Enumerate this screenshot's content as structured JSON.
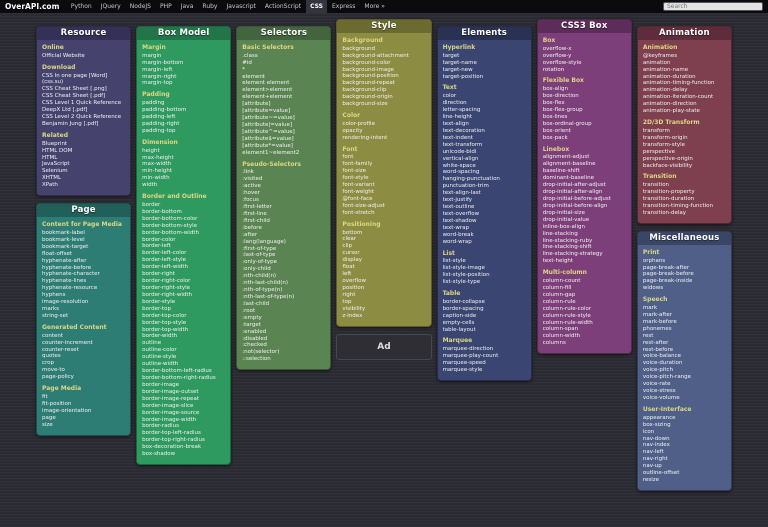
{
  "header": {
    "logo": "OverAPI.com",
    "nav": [
      "Python",
      "JQuery",
      "NodeJS",
      "PHP",
      "Java",
      "Ruby",
      "Javascript",
      "ActionScript",
      "CSS",
      "Express",
      "More »"
    ],
    "active": "CSS",
    "search_placeholder": "Search"
  },
  "colors": {
    "background": "#2b2b33",
    "topbar": "#0b0b0d",
    "section_heading": "#ddd883",
    "item_text": "#f4f4f4"
  },
  "themes": {
    "resource": {
      "body": "#46426e",
      "header": "#343057"
    },
    "page": {
      "body": "#2e7d74",
      "header": "#21605a"
    },
    "boxmodel": {
      "body": "#2f9a60",
      "header": "#217549"
    },
    "selectors": {
      "body": "#5b8453",
      "header": "#43653e"
    },
    "style": {
      "body": "#8c8c42",
      "header": "#6b6b31"
    },
    "elements": {
      "body": "#3a4572",
      "header": "#2a3254"
    },
    "css3box": {
      "body": "#7d3f79",
      "header": "#5e2c5b"
    },
    "animation": {
      "body": "#7e3f4e",
      "header": "#5e2c3a"
    },
    "misc": {
      "body": "#4f5f88",
      "header": "#3a4666"
    }
  },
  "columns": [
    {
      "cards": [
        {
          "title": "Resource",
          "theme": "resource",
          "wrap": true,
          "sections": [
            {
              "heading": "Online",
              "items": [
                "Official Website"
              ]
            },
            {
              "heading": "Download",
              "items": [
                "CSS In one page [Word] (css.su)",
                "CSS Cheat Sheet [.png]",
                "CSS Cheat Sheet [.pdf]",
                "CSS Level 1 Quick Reference DeepX Ltd [.pdf]",
                "CSS Level 2 Quick Reference Benjamin Jung [.pdf]"
              ]
            },
            {
              "heading": "Related",
              "items": [
                "Blueprint",
                "HTML DOM",
                "HTML",
                "JavaScript",
                "Selenium",
                "XHTML",
                "XPath"
              ]
            }
          ]
        },
        {
          "title": "Page",
          "theme": "page",
          "sections": [
            {
              "heading": "Content for Page Media",
              "items": [
                "bookmark-label",
                "bookmark-level",
                "bookmark-target",
                "float-offset",
                "hyphenate-after",
                "hyphenate-before",
                "hyphenate-character",
                "hyphenate-lines",
                "hyphenate-resource",
                "hyphens",
                "image-resolution",
                "marks",
                "string-set"
              ]
            },
            {
              "heading": "Generated Content",
              "items": [
                "content",
                "counter-increment",
                "counter-reset",
                "quotes",
                "crop",
                "move-to",
                "page-policy"
              ]
            },
            {
              "heading": "Page Media",
              "items": [
                "fit",
                "fit-position",
                "image-orientation",
                "page",
                "size"
              ]
            }
          ]
        }
      ]
    },
    {
      "cards": [
        {
          "title": "Box Model",
          "theme": "boxmodel",
          "sections": [
            {
              "heading": "Margin",
              "items": [
                "margin",
                "margin-bottom",
                "margin-left",
                "margin-right",
                "margin-top"
              ]
            },
            {
              "heading": "Padding",
              "items": [
                "padding",
                "padding-bottom",
                "padding-left",
                "padding-right",
                "padding-top"
              ]
            },
            {
              "heading": "Dimension",
              "items": [
                "height",
                "max-height",
                "max-width",
                "min-height",
                "min-width",
                "width"
              ]
            },
            {
              "heading": "Border and Outline",
              "items": [
                "border",
                "border-bottom",
                "border-bottom-color",
                "border-bottom-style",
                "border-bottom-width",
                "border-color",
                "border-left",
                "border-left-color",
                "border-left-style",
                "border-left-width",
                "border-right",
                "border-right-color",
                "border-right-style",
                "border-right-width",
                "border-style",
                "border-top",
                "border-top-color",
                "border-top-style",
                "border-top-width",
                "border-width",
                "outline",
                "outline-color",
                "outline-style",
                "outline-width",
                "border-bottom-left-radius",
                "border-bottom-right-radius",
                "border-image",
                "border-image-outset",
                "border-image-repeat",
                "border-image-slice",
                "border-image-source",
                "border-image-width",
                "border-radius",
                "border-top-left-radius",
                "border-top-right-radius",
                "box-decoration-break",
                "box-shadow"
              ]
            }
          ]
        }
      ]
    },
    {
      "cards": [
        {
          "title": "Selectors",
          "theme": "selectors",
          "sections": [
            {
              "heading": "Basic Selectors",
              "items": [
                ".class",
                "#id",
                "*",
                "element",
                "element element",
                "element>element",
                "element+element",
                "[attribute]",
                "[attribute=value]",
                "[attribute~=value]",
                "[attribute|=value]",
                "[attribute^=value]",
                "[attribute$=value]",
                "[attribute*=value]",
                "element1~element2"
              ]
            },
            {
              "heading": "Pseudo-Selectors",
              "items": [
                ":link",
                ":visited",
                ":active",
                ":hover",
                ":focus",
                ":first-letter",
                ":first-line",
                ":first-child",
                ":before",
                ":after",
                ":lang(language)",
                ":first-of-type",
                ":last-of-type",
                ":only-of-type",
                ":only-child",
                ":nth-child(n)",
                ":nth-last-child(n)",
                ":nth-of-type(n)",
                ":nth-last-of-type(n)",
                ":last-child",
                ":root",
                ":empty",
                ":target",
                ":enabled",
                ":disabled",
                ":checked",
                ":not(selector)",
                "::selection"
              ]
            }
          ]
        }
      ]
    },
    {
      "cards": [
        {
          "title": "Style",
          "theme": "style",
          "sections": [
            {
              "heading": "Background",
              "items": [
                "background",
                "background-attachment",
                "background-color",
                "background-image",
                "background-position",
                "background-repeat",
                "background-clip",
                "background-origin",
                "background-size"
              ]
            },
            {
              "heading": "Color",
              "items": [
                "color-profile",
                "opacity",
                "rendering-intent"
              ]
            },
            {
              "heading": "Font",
              "items": [
                "font",
                "font-family",
                "font-size",
                "font-style",
                "font-variant",
                "font-weight",
                "@font-face",
                "font-size-adjust",
                "font-stretch"
              ]
            },
            {
              "heading": "Positioning",
              "items": [
                "bottom",
                "clear",
                "clip",
                "cursor",
                "display",
                "float",
                "left",
                "overflow",
                "position",
                "right",
                "top",
                "visibility",
                "z-index"
              ]
            }
          ]
        },
        {
          "type": "ad",
          "label": "Ad"
        }
      ]
    },
    {
      "cards": [
        {
          "title": "Elements",
          "theme": "elements",
          "sections": [
            {
              "heading": "Hyperlink",
              "items": [
                "target",
                "target-name",
                "target-new",
                "target-position"
              ]
            },
            {
              "heading": "Text",
              "items": [
                "color",
                "direction",
                "letter-spacing",
                "line-height",
                "text-align",
                "text-decoration",
                "text-indent",
                "text-transform",
                "unicode-bidi",
                "vertical-align",
                "white-space",
                "word-spacing",
                "hanging-punctuation",
                "punctuation-trim",
                "text-align-last",
                "text-justify",
                "text-outline",
                "text-overflow",
                "text-shadow",
                "text-wrap",
                "word-break",
                "word-wrap"
              ]
            },
            {
              "heading": "List",
              "items": [
                "list-style",
                "list-style-image",
                "list-style-position",
                "list-style-type"
              ]
            },
            {
              "heading": "Table",
              "items": [
                "border-collapse",
                "border-spacing",
                "caption-side",
                "empty-cells",
                "table-layout"
              ]
            },
            {
              "heading": "Marquee",
              "items": [
                "marquee-direction",
                "marquee-play-count",
                "marquee-speed",
                "marquee-style"
              ]
            }
          ]
        }
      ]
    },
    {
      "cards": [
        {
          "title": "CSS3 Box",
          "theme": "css3box",
          "sections": [
            {
              "heading": "Box",
              "items": [
                "overflow-x",
                "overflow-y",
                "overflow-style",
                "rotation"
              ]
            },
            {
              "heading": "Flexible Box",
              "items": [
                "box-align",
                "box-direction",
                "box-flex",
                "box-flex-group",
                "box-lines",
                "box-ordinal-group",
                "box-orient",
                "box-pack"
              ]
            },
            {
              "heading": "Linebox",
              "items": [
                "alignment-adjust",
                "alignment-baseline",
                "baseline-shift",
                "dominant-baseline",
                "drop-initial-after-adjust",
                "drop-initial-after-align",
                "drop-initial-before-adjust",
                "drop-initial-before-align",
                "drop-initial-size",
                "drop-initial-value",
                "inline-box-align",
                "line-stacking",
                "line-stacking-ruby",
                "line-stacking-shift",
                "line-stacking-strategy",
                "text-height"
              ]
            },
            {
              "heading": "Multi-column",
              "items": [
                "column-count",
                "column-fill",
                "column-gap",
                "column-rule",
                "column-rule-color",
                "column-rule-style",
                "column-rule-width",
                "column-span",
                "column-width",
                "columns"
              ]
            }
          ]
        }
      ]
    },
    {
      "cards": [
        {
          "title": "Animation",
          "theme": "animation",
          "sections": [
            {
              "heading": "Animation",
              "items": [
                "@keyframes",
                "animation",
                "animation-name",
                "animation-duration",
                "animation-timing-function",
                "animation-delay",
                "animation-iteration-count",
                "animation-direction",
                "animation-play-state"
              ]
            },
            {
              "heading": "2D/3D Transform",
              "items": [
                "transform",
                "transform-origin",
                "transform-style",
                "perspective",
                "perspective-origin",
                "backface-visibility"
              ]
            },
            {
              "heading": "Transition",
              "items": [
                "transition",
                "transition-property",
                "transition-duration",
                "transition-timing-function",
                "transition-delay"
              ]
            }
          ]
        },
        {
          "title": "Miscellaneous",
          "theme": "misc",
          "sections": [
            {
              "heading": "Print",
              "items": [
                "orphans",
                "page-break-after",
                "page-break-before",
                "page-break-inside",
                "widows"
              ]
            },
            {
              "heading": "Speech",
              "items": [
                "mark",
                "mark-after",
                "mark-before",
                "phonemes",
                "rest",
                "rest-after",
                "rest-before",
                "voice-balance",
                "voice-duration",
                "voice-pitch",
                "voice-pitch-range",
                "voice-rate",
                "voice-stress",
                "voice-volume"
              ]
            },
            {
              "heading": "User-Interface",
              "items": [
                "appearance",
                "box-sizing",
                "icon",
                "nav-down",
                "nav-index",
                "nav-left",
                "nav-right",
                "nav-up",
                "outline-offset",
                "resize"
              ]
            }
          ]
        }
      ]
    }
  ]
}
